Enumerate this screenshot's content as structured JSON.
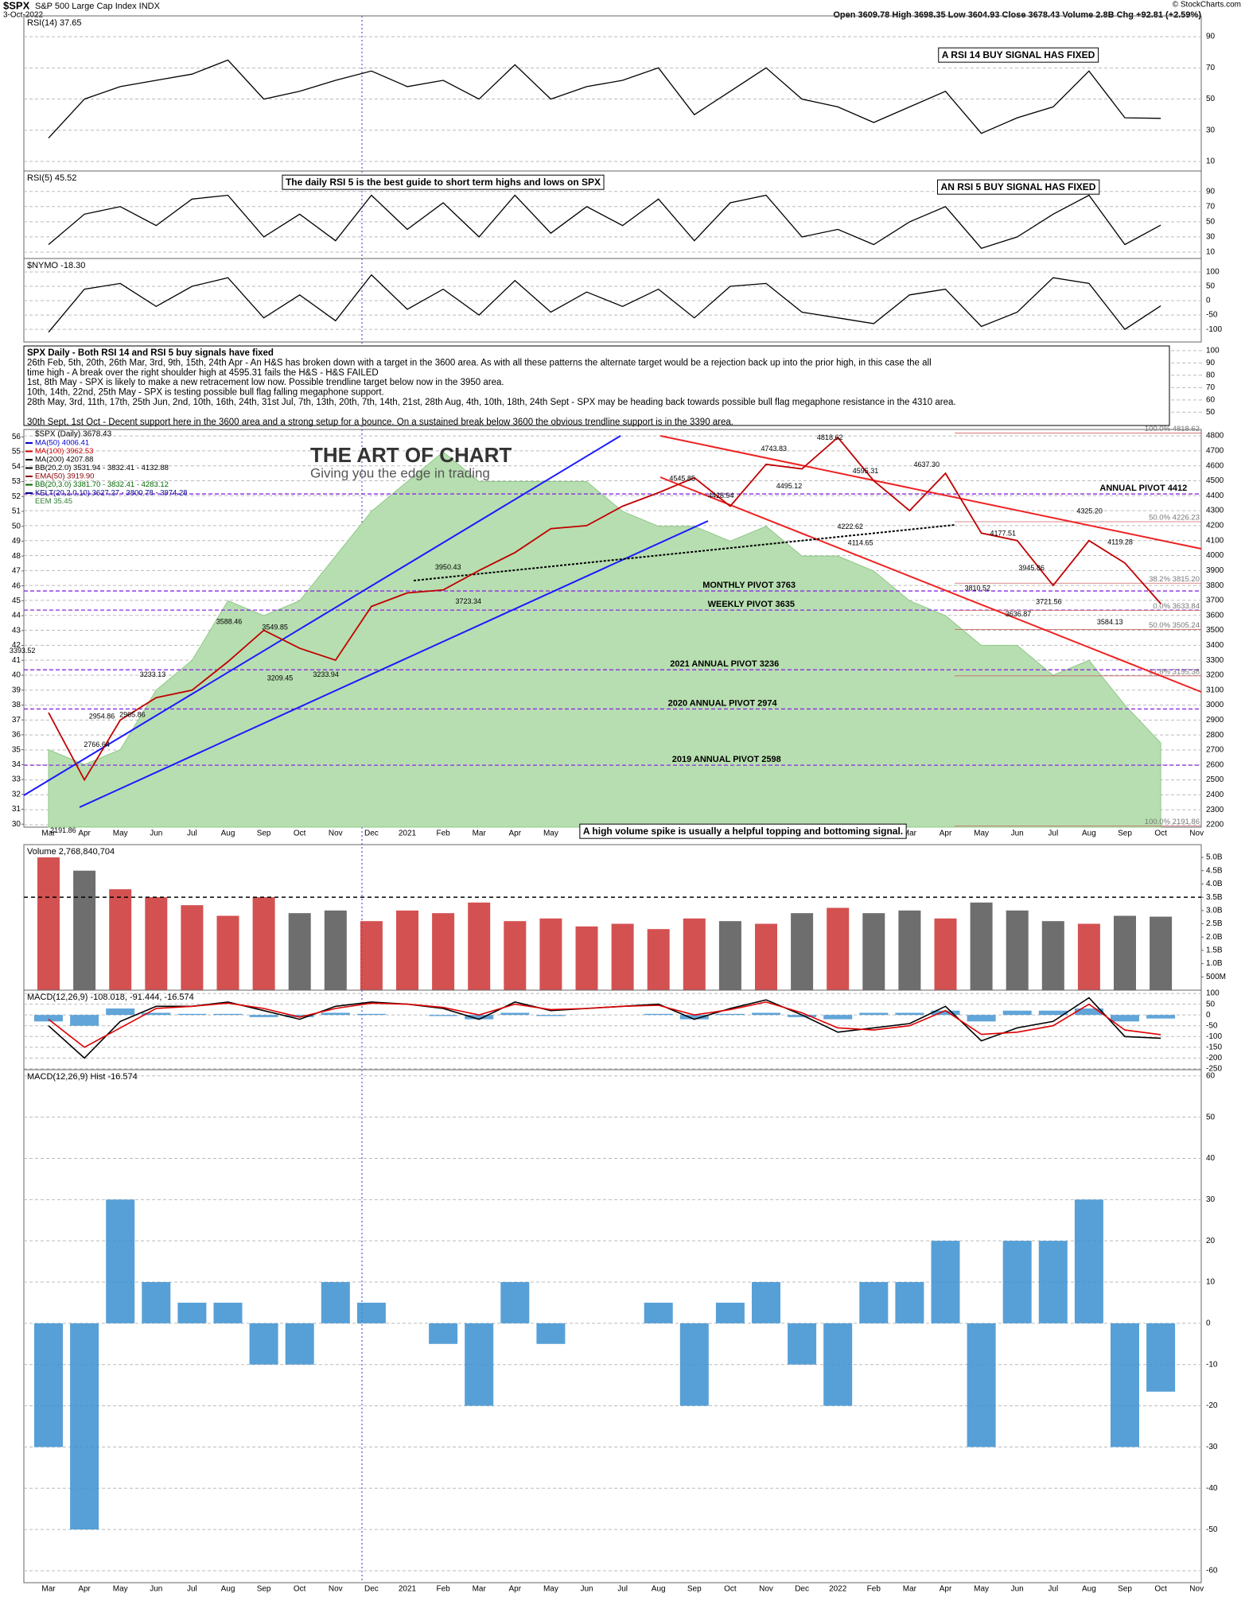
{
  "header": {
    "symbol": "$SPX",
    "name": "S&P 500 Large Cap Index INDX",
    "date": "3-Oct-2022",
    "source": "© StockCharts.com",
    "quote": "Open 3609.78 High 3698.35 Low 3604.93 Close 3678.43 Volume 2.8B Chg +92.81 (+2.59%)"
  },
  "chart_data": [
    {
      "type": "line",
      "title": "RSI(14) 37.65",
      "color": "#000000",
      "ylim": [
        3.9,
        103.3
      ],
      "yticks": [
        10,
        30,
        50,
        70,
        90
      ],
      "values": [
        25,
        50,
        58,
        62,
        66,
        75,
        50,
        55,
        62,
        68,
        58,
        62,
        50,
        72,
        50,
        58,
        62,
        70,
        40,
        55,
        70,
        50,
        45,
        35,
        45,
        55,
        28,
        38,
        45,
        68,
        38,
        37.65,
        null
      ],
      "notes": [
        "A RSI 14 BUY SIGNAL HAS FIXED"
      ]
    },
    {
      "type": "line",
      "title": "RSI(5) 45.52",
      "color": "#000000",
      "ylim": [
        1.6,
        117
      ],
      "yticks": [
        10,
        30,
        50,
        70,
        90
      ],
      "values": [
        20,
        60,
        70,
        45,
        80,
        85,
        30,
        60,
        25,
        85,
        40,
        75,
        30,
        85,
        35,
        70,
        45,
        80,
        25,
        75,
        85,
        30,
        40,
        20,
        50,
        70,
        15,
        30,
        60,
        85,
        20,
        45.52,
        null
      ],
      "notes": [
        "The daily RSI 5 is the best guide to short term highs and lows on SPX",
        "AN RSI 5 BUY SIGNAL HAS FIXED"
      ]
    },
    {
      "type": "line",
      "title": "$NYMO -18.30",
      "color": "#000000",
      "ylim": [
        -144,
        147
      ],
      "yticks": [
        100,
        50,
        0,
        -50,
        -100
      ],
      "values": [
        -110,
        40,
        60,
        -20,
        50,
        80,
        -60,
        20,
        -70,
        90,
        -30,
        40,
        -50,
        70,
        -40,
        30,
        -20,
        40,
        -60,
        50,
        60,
        -40,
        -60,
        -80,
        20,
        40,
        -90,
        -40,
        80,
        60,
        -100,
        -18.3,
        null
      ]
    },
    {
      "type": "text",
      "ylim": [
        36,
        107
      ],
      "yticks": [
        100,
        90,
        80,
        70,
        60,
        50
      ],
      "notes": [
        "SPX Daily - Both RSI 14 and RSI 5 buy signals have fixed",
        "26th Feb, 5th, 20th, 26th Mar, 3rd, 9th, 15th, 24th Apr - An H&S has broken down with a target in the 3600 area. As with all these patterns the alternate target would be a rejection back up into the prior high, in this case the all",
        "time high - A break over the right shoulder high at 4595.31 fails the H&S - H&S FAILED",
        "1st, 8th May - SPX is likely to make a new retracement low now. Possible trendline target below now in the 3950 area.",
        "10th, 14th, 22nd, 25th May - SPX is testing possible bull flag falling megaphone support.",
        "28th May, 3rd, 11th, 17th, 25th Jun, 2nd, 10th, 16th, 24th, 31st Jul, 7th, 13th, 20th, 7th, 14th, 21st, 28th Aug, 4th, 10th, 18th, 24th Sept - SPX may be heading back towards possible bull flag megaphone resistance in the 4310 area.",
        "30th Sept, 1st Oct - Decent support here in the 3600 area and a strong setup for a bounce. On a sustained break below 3600 the obvious trendline support is in the 3390 area."
      ]
    },
    {
      "type": "line",
      "categories": [
        "Mar",
        "Apr",
        "May",
        "Jun",
        "Jul",
        "Aug",
        "Sep",
        "Oct",
        "Nov",
        "Dec",
        "2021",
        "Feb",
        "Mar",
        "Apr",
        "May",
        "Jun",
        "Jul",
        "Aug",
        "Sep",
        "Oct",
        "Nov",
        "Dec",
        "2022",
        "Feb",
        "Mar",
        "Apr",
        "May",
        "Jun",
        "Jul",
        "Aug",
        "Sep",
        "Oct",
        "Nov"
      ],
      "series": [
        {
          "name": "EEM 35.45",
          "color": "#b7deb0",
          "axis": "y2",
          "values": [
            35,
            34,
            35,
            39,
            41,
            45,
            44,
            45,
            48,
            51,
            53,
            55,
            53,
            53,
            53,
            53,
            51,
            50,
            50,
            49,
            50,
            48,
            48,
            47,
            45,
            44,
            42,
            42,
            40,
            41,
            38,
            35.45,
            null
          ]
        },
        {
          "name": "$SPX (Daily) 3678.43",
          "color": "#c00000",
          "values": [
            2950,
            2500,
            2900,
            3050,
            3100,
            3290,
            3500,
            3380,
            3300,
            3660,
            3750,
            3770,
            3900,
            4020,
            4180,
            4200,
            4330,
            4420,
            4520,
            4330,
            4610,
            4580,
            4790,
            4500,
            4300,
            4550,
            4150,
            4100,
            3800,
            4100,
            3950,
            3678.43,
            null
          ]
        }
      ],
      "legend_extras": [
        {
          "name": "MA(50) 4006.41",
          "color": "#0000cc"
        },
        {
          "name": "MA(100) 3962.53",
          "color": "#cc0000"
        },
        {
          "name": "MA(200) 4207.88",
          "color": "#000000"
        },
        {
          "name": "BB(20,2.0) 3531.94 - 3832.41 - 4132.88",
          "color": "#000000"
        },
        {
          "name": "EMA(50) 3919.90",
          "color": "#880000"
        },
        {
          "name": "BB(20,3.0) 3381.70 - 3832.41 - 4283.12",
          "color": "#006600"
        },
        {
          "name": "KELT(20,2.0,10) 3627.27 - 3800.78 - 3974.28",
          "color": "#000088"
        }
      ],
      "ylim": [
        2184,
        4843
      ],
      "yticks": [
        2200,
        2300,
        2400,
        2500,
        2600,
        2700,
        2800,
        2900,
        3000,
        3100,
        3200,
        3300,
        3400,
        3500,
        3600,
        3700,
        3800,
        3900,
        4000,
        4100,
        4200,
        4300,
        4400,
        4500,
        4600,
        4700,
        4800
      ],
      "y2lim": [
        29.8,
        56.5
      ],
      "y2ticks": [
        30,
        31,
        32,
        33,
        34,
        35,
        36,
        37,
        38,
        39,
        40,
        41,
        42,
        43,
        44,
        45,
        46,
        47,
        48,
        49,
        50,
        51,
        52,
        53,
        54,
        55,
        56
      ],
      "pivots": [
        {
          "label": "ANNUAL PIVOT 4412",
          "value": 4412
        },
        {
          "label": "MONTHLY PIVOT 3763",
          "value": 3763
        },
        {
          "label": "WEEKLY PIVOT 3635",
          "value": 3635
        },
        {
          "label": "2021 ANNUAL PIVOT 3236",
          "value": 3236
        },
        {
          "label": "2020 ANNUAL PIVOT 2974",
          "value": 2974
        },
        {
          "label": "2019 ANNUAL PIVOT 2598",
          "value": 2598
        }
      ],
      "fib_levels": [
        {
          "label": "100.0% 4818.62",
          "value": 4818.62
        },
        {
          "label": "50.0% 4226.23",
          "value": 4226.23
        },
        {
          "label": "38.2% 3815.20",
          "value": 3815.2
        },
        {
          "label": "0.0% 3633.84",
          "value": 3633.84
        },
        {
          "label": "50.0% 3505.24",
          "value": 3505.24
        },
        {
          "label": "61.8% 3195.38",
          "value": 3195.38
        },
        {
          "label": "100.0% 2191.86",
          "value": 2191.86
        }
      ],
      "price_labels": [
        4818.62,
        4743.83,
        {
          "value": 4637.3,
          "label": "4637.30"
        },
        4545.85,
        4595.31,
        {
          "value": 4325.2,
          "label": "4325.20"
        },
        4222.62,
        4114.65,
        4177.51,
        4119.28,
        3945.86,
        3950.43,
        3810.52,
        3721.56,
        3636.87,
        3584.13,
        3723.34,
        3588.46,
        3549.85,
        3393.52,
        3233.13,
        3209.45,
        3233.94,
        2954.86,
        2965.86,
        2766.64,
        2191.86,
        4428.94,
        4495.12
      ],
      "logo": {
        "title": "THE ART OF CHART",
        "tagline": "Giving you the edge in trading"
      }
    },
    {
      "type": "bar",
      "title": "Volume 2,768,840,704",
      "color": "#cc3333",
      "ylim": [
        0,
        5480000000
      ],
      "yticks": [
        {
          "value": 500000000,
          "label": "500M"
        },
        {
          "value": 1000000000,
          "label": "1.0B"
        },
        {
          "value": 1500000000,
          "label": "1.5B"
        },
        {
          "value": 2000000000,
          "label": "2.0B"
        },
        {
          "value": 2500000000,
          "label": "2.5B"
        },
        {
          "value": 3000000000,
          "label": "3.0B"
        },
        {
          "value": 3500000000,
          "label": "3.5B"
        },
        {
          "value": 4000000000,
          "label": "4.0B"
        },
        {
          "value": 4500000000,
          "label": "4.5B"
        },
        {
          "value": 5000000000,
          "label": "5.0B"
        }
      ],
      "threshold": 3500000000,
      "values": [
        5000000000,
        4500000000,
        3800000000,
        3500000000,
        3200000000,
        2800000000,
        3500000000,
        2900000000,
        3000000000,
        2600000000,
        3000000000,
        2900000000,
        3300000000,
        2600000000,
        2700000000,
        2400000000,
        2500000000,
        2300000000,
        2700000000,
        2600000000,
        2500000000,
        2900000000,
        3100000000,
        2900000000,
        3000000000,
        2700000000,
        3300000000,
        3000000000,
        2600000000,
        2500000000,
        2800000000,
        2768840704,
        null
      ],
      "notes": [
        "A high volume spike is usually a helpful topping and bottoming signal."
      ]
    },
    {
      "type": "line",
      "title": "MACD(12,26,9) -108.018, -91.444, -16.574",
      "ylim": [
        -254,
        115
      ],
      "yticks": [
        100,
        50,
        0,
        -50,
        -100,
        -150,
        -200,
        -250
      ],
      "series": [
        {
          "color": "#000000",
          "values": [
            -50,
            -200,
            -30,
            40,
            40,
            60,
            20,
            -20,
            40,
            60,
            50,
            30,
            -20,
            60,
            20,
            30,
            40,
            50,
            -20,
            30,
            70,
            0,
            -80,
            -60,
            -40,
            40,
            -120,
            -60,
            -30,
            80,
            -100,
            -108.018,
            null
          ]
        },
        {
          "color": "#dd0000",
          "values": [
            -20,
            -150,
            -60,
            30,
            40,
            55,
            30,
            -10,
            30,
            55,
            50,
            35,
            0,
            50,
            25,
            30,
            40,
            45,
            0,
            25,
            60,
            10,
            -60,
            -70,
            -50,
            20,
            -90,
            -80,
            -50,
            50,
            -70,
            -91.444,
            null
          ]
        }
      ]
    },
    {
      "type": "bar",
      "title": "MACD(12,26,9) Hist -16.574",
      "color": "#3a8fd0",
      "ylim": [
        -62.9,
        61.5
      ],
      "yticks": [
        60,
        50,
        40,
        30,
        20,
        10,
        0,
        -10,
        -20,
        -30,
        -40,
        -50,
        -60
      ],
      "values": [
        -30,
        -50,
        30,
        10,
        5,
        5,
        -10,
        -10,
        10,
        5,
        0,
        -5,
        -20,
        10,
        -5,
        0,
        0,
        5,
        -20,
        5,
        10,
        -10,
        -20,
        10,
        10,
        20,
        -30,
        20,
        20,
        30,
        -30,
        -16.574,
        null
      ]
    }
  ]
}
